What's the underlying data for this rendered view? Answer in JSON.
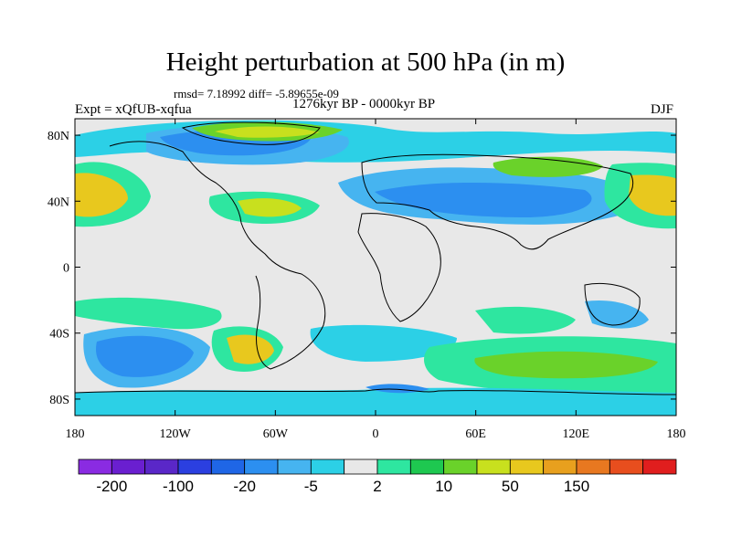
{
  "title": "Height perturbation at 500 hPa (in m)",
  "stats": "rmsd= 7.18992 diff= -5.89655e-09",
  "experiment": "Expt = xQfUB-xqfua",
  "period": "1276kyr BP - 0000kyr BP",
  "season": "DJF",
  "x_ticks": [
    "180",
    "120W",
    "60W",
    "0",
    "60E",
    "120E",
    "180"
  ],
  "y_ticks": [
    "80N",
    "40N",
    "0",
    "40S",
    "80S"
  ],
  "colorbar": {
    "colors": [
      "#8a2be2",
      "#6a1fd0",
      "#5a27c8",
      "#2b3fe0",
      "#1f66e6",
      "#2c8ff0",
      "#46b4f0",
      "#2cd0e6",
      "#e8e8e8",
      "#2ee6a0",
      "#1ec850",
      "#6ad22a",
      "#c8e01e",
      "#e8c81e",
      "#e8a01e",
      "#e87820",
      "#e84e1e",
      "#e01e1e"
    ],
    "labels": [
      "-200",
      "-100",
      "-20",
      "-5",
      "2",
      "10",
      "50",
      "150"
    ]
  }
}
